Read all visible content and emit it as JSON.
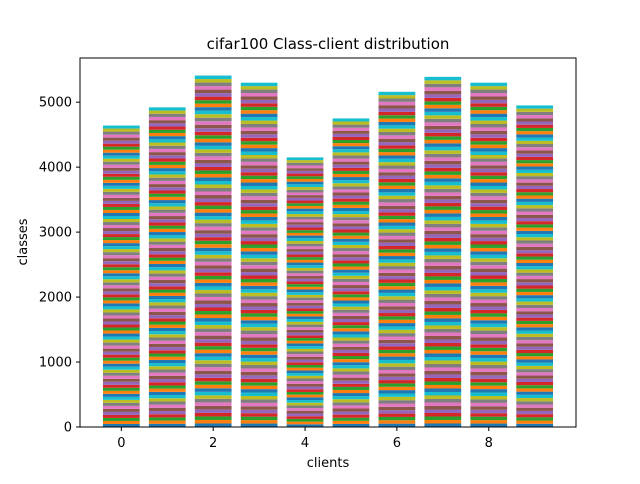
{
  "chart_data": {
    "type": "bar",
    "stacked": true,
    "title": "cifar100 Class-client distribution",
    "xlabel": "clients",
    "ylabel": "classes",
    "categories": [
      0,
      1,
      2,
      3,
      4,
      5,
      6,
      7,
      8,
      9
    ],
    "totals": [
      4640,
      4920,
      5410,
      5300,
      4150,
      4750,
      5160,
      5390,
      5300,
      4950
    ],
    "segments_per_bar": 100,
    "x_ticks": [
      0,
      2,
      4,
      6,
      8
    ],
    "y_ticks": [
      0,
      1000,
      2000,
      3000,
      4000,
      5000
    ],
    "xlim": [
      -0.9,
      9.9
    ],
    "ylim": [
      0,
      5680
    ],
    "grid": false,
    "legend": "none",
    "colors": [
      "#1f77b4",
      "#ff7f0e",
      "#2ca02c",
      "#d62728",
      "#9467bd",
      "#8c564b",
      "#e377c2",
      "#7f7f7f",
      "#bcbd22",
      "#17becf"
    ]
  }
}
